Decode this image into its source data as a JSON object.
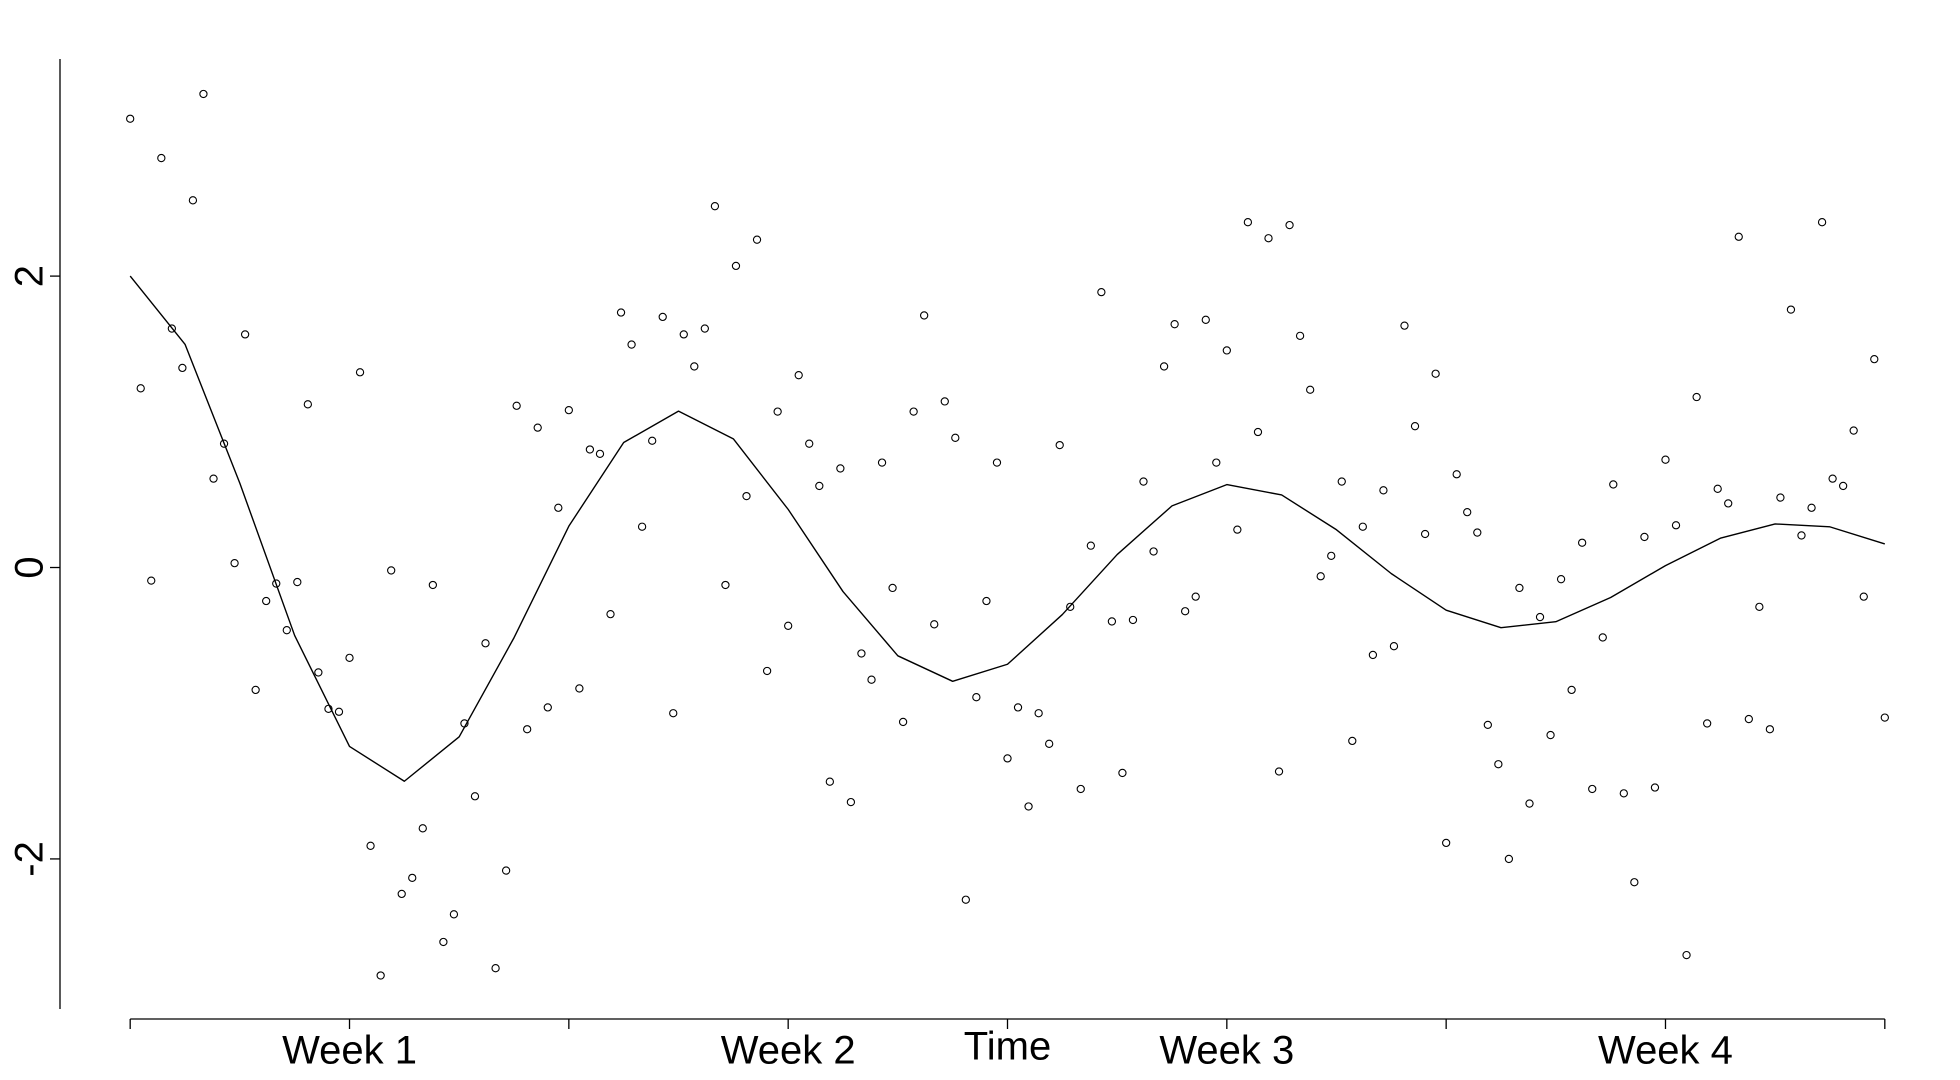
{
  "chart_data": {
    "type": "scatter",
    "x_label": "Time",
    "xlim": [
      0.34,
      4.66
    ],
    "ylim": [
      -3.03,
      3.49
    ],
    "xticks": [
      {
        "value": 1,
        "label": "Week 1"
      },
      {
        "value": 2,
        "label": "Week 2"
      },
      {
        "value": 3,
        "label": "Week 3"
      },
      {
        "value": 4,
        "label": "Week 4"
      }
    ],
    "xminorticks": [
      0.5,
      1.5,
      2.5,
      3.5,
      4.5
    ],
    "yticks": [
      -2,
      0,
      2
    ],
    "color": "#000000",
    "points": {
      "x": [
        0.5,
        0.524,
        0.548,
        0.571,
        0.595,
        0.619,
        0.643,
        0.667,
        0.69,
        0.714,
        0.738,
        0.762,
        0.786,
        0.81,
        0.833,
        0.857,
        0.881,
        0.905,
        0.929,
        0.952,
        0.976,
        1,
        1.024,
        1.048,
        1.071,
        1.095,
        1.119,
        1.143,
        1.167,
        1.19,
        1.214,
        1.238,
        1.262,
        1.286,
        1.31,
        1.333,
        1.357,
        1.381,
        1.405,
        1.429,
        1.452,
        1.476,
        1.5,
        1.524,
        1.548,
        1.571,
        1.595,
        1.619,
        1.643,
        1.667,
        1.69,
        1.714,
        1.738,
        1.762,
        1.786,
        1.81,
        1.833,
        1.857,
        1.881,
        1.905,
        1.929,
        1.952,
        1.976,
        2,
        2.024,
        2.048,
        2.071,
        2.095,
        2.119,
        2.143,
        2.167,
        2.19,
        2.214,
        2.238,
        2.262,
        2.286,
        2.31,
        2.333,
        2.357,
        2.381,
        2.405,
        2.429,
        2.452,
        2.476,
        2.5,
        2.524,
        2.548,
        2.571,
        2.595,
        2.619,
        2.643,
        2.667,
        2.69,
        2.714,
        2.738,
        2.762,
        2.786,
        2.81,
        2.833,
        2.857,
        2.881,
        2.905,
        2.929,
        2.952,
        2.976,
        3,
        3.024,
        3.048,
        3.071,
        3.095,
        3.119,
        3.143,
        3.167,
        3.19,
        3.214,
        3.238,
        3.262,
        3.286,
        3.31,
        3.333,
        3.357,
        3.381,
        3.405,
        3.429,
        3.452,
        3.476,
        3.5,
        3.524,
        3.548,
        3.571,
        3.595,
        3.619,
        3.643,
        3.667,
        3.69,
        3.714,
        3.738,
        3.762,
        3.786,
        3.81,
        3.833,
        3.857,
        3.881,
        3.905,
        3.929,
        3.952,
        3.976,
        4,
        4.024,
        4.048,
        4.071,
        4.095,
        4.119,
        4.143,
        4.167,
        4.19,
        4.214,
        4.238,
        4.262,
        4.286,
        4.31,
        4.333,
        4.357,
        4.381,
        4.405,
        4.429,
        4.452,
        4.476,
        4.5
      ],
      "values": [
        3.08,
        1.23,
        -0.09,
        2.81,
        1.64,
        1.37,
        2.52,
        3.25,
        0.61,
        0.85,
        0.03,
        1.6,
        -0.84,
        -0.23,
        -0.11,
        -0.43,
        -0.1,
        1.12,
        -0.72,
        -0.97,
        -0.99,
        -0.62,
        1.34,
        -1.91,
        -2.8,
        -0.02,
        -2.24,
        -2.13,
        -1.79,
        -0.12,
        -2.57,
        -2.38,
        -1.07,
        -1.57,
        -0.52,
        -2.75,
        -2.08,
        1.11,
        -1.11,
        0.96,
        -0.96,
        0.41,
        1.08,
        -0.83,
        0.81,
        0.78,
        -0.32,
        1.75,
        1.53,
        0.28,
        0.87,
        1.72,
        -1.0,
        1.6,
        1.38,
        1.64,
        2.48,
        -0.12,
        2.07,
        0.49,
        2.25,
        -0.71,
        1.07,
        -0.4,
        1.32,
        0.85,
        0.56,
        -1.47,
        0.68,
        -1.61,
        -0.59,
        -0.77,
        0.72,
        -0.14,
        -1.06,
        1.07,
        1.73,
        -0.39,
        1.14,
        0.89,
        -2.28,
        -0.89,
        -0.23,
        0.72,
        -1.31,
        -0.96,
        -1.64,
        -1.0,
        -1.21,
        0.84,
        -0.27,
        -1.52,
        0.15,
        1.89,
        -0.37,
        -1.41,
        -0.36,
        0.59,
        0.11,
        1.38,
        1.67,
        -0.3,
        -0.2,
        1.7,
        0.72,
        1.49,
        0.26,
        2.37,
        0.93,
        2.26,
        -1.4,
        2.35,
        1.59,
        1.22,
        -0.06,
        0.08,
        0.59,
        -1.19,
        0.28,
        -0.6,
        0.53,
        -0.54,
        1.66,
        0.97,
        0.23,
        1.33,
        -1.89,
        0.64,
        0.38,
        0.24,
        -1.08,
        -1.35,
        -2.0,
        -0.14,
        -1.62,
        -0.34,
        -1.15,
        -0.08,
        -0.84,
        0.17,
        -1.52,
        -0.48,
        0.57,
        -1.55,
        -2.16,
        0.21,
        -1.51,
        0.74,
        0.29,
        -2.66,
        1.17,
        -1.07,
        0.54,
        0.44,
        2.27,
        -1.04,
        -0.27,
        -1.11,
        0.48,
        1.77,
        0.22,
        0.41,
        2.37,
        0.61,
        0.56,
        0.94,
        -0.2,
        1.43,
        -1.03
      ]
    },
    "curve": {
      "x": [
        0.5,
        0.625,
        0.75,
        0.875,
        1,
        1.125,
        1.25,
        1.375,
        1.5,
        1.625,
        1.75,
        1.875,
        2,
        2.125,
        2.25,
        2.375,
        2.5,
        2.625,
        2.75,
        2.875,
        3,
        3.125,
        3.25,
        3.375,
        3.5,
        3.625,
        3.75,
        3.875,
        4,
        4.125,
        4.25,
        4.375,
        4.5
      ],
      "values": [
        2.0,
        1.532,
        0.578,
        -0.467,
        -1.228,
        -1.467,
        -1.162,
        -0.482,
        0.284,
        0.858,
        1.073,
        0.883,
        0.399,
        -0.165,
        -0.606,
        -0.781,
        -0.664,
        -0.323,
        0.089,
        0.423,
        0.569,
        0.498,
        0.259,
        -0.042,
        -0.293,
        -0.413,
        -0.372,
        -0.206,
        0.013,
        0.201,
        0.299,
        0.279,
        0.162
      ]
    }
  }
}
